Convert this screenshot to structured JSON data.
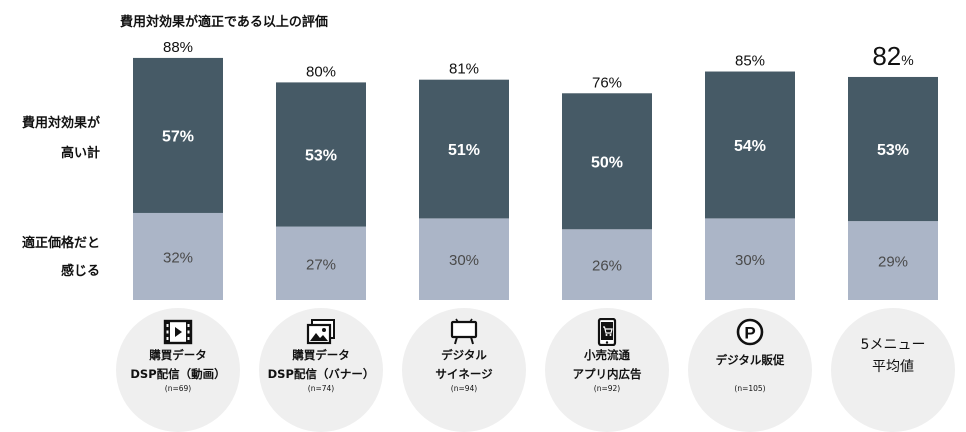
{
  "chart_data": {
    "type": "bar",
    "stacked": true,
    "title": "費用対効果が適正である以上の評価",
    "ylabel_top": [
      "費用対効果が",
      "高い計"
    ],
    "ylabel_bottom": [
      "適正価格だと",
      "感じる"
    ],
    "ylim": [
      0,
      100
    ],
    "categories": [
      {
        "lines": [
          "購買データ",
          "DSP配信（動画）"
        ],
        "n": "(n=69)",
        "icon": "film-icon"
      },
      {
        "lines": [
          "購買データ",
          "DSP配信（バナー）"
        ],
        "n": "(n=74)",
        "icon": "image-icon"
      },
      {
        "lines": [
          "デジタル",
          "サイネージ"
        ],
        "n": "(n=94)",
        "icon": "signage-icon"
      },
      {
        "lines": [
          "小売流通",
          "アプリ内広告"
        ],
        "n": "(n=92)",
        "icon": "smartphone-cart-icon"
      },
      {
        "lines": [
          "デジタル販促"
        ],
        "n": "(n=105)",
        "icon": "points-p-icon"
      },
      {
        "lines": [
          "5メニュー",
          "平均値"
        ],
        "n": "",
        "icon": ""
      }
    ],
    "totals": [
      "88%",
      "80%",
      "81%",
      "76%",
      "85%",
      "82"
    ],
    "total_suffix_last": "%",
    "series": [
      {
        "name": "費用対効果が高い計",
        "values": [
          57,
          53,
          51,
          50,
          54,
          53
        ],
        "labels": [
          "57%",
          "53%",
          "51%",
          "50%",
          "54%",
          "53%"
        ],
        "color": "#465a66"
      },
      {
        "name": "適正価格だと感じる",
        "values": [
          32,
          27,
          30,
          26,
          30,
          29
        ],
        "labels": [
          "32%",
          "27%",
          "30%",
          "26%",
          "30%",
          "29%"
        ],
        "color": "#abb5c7"
      }
    ]
  }
}
